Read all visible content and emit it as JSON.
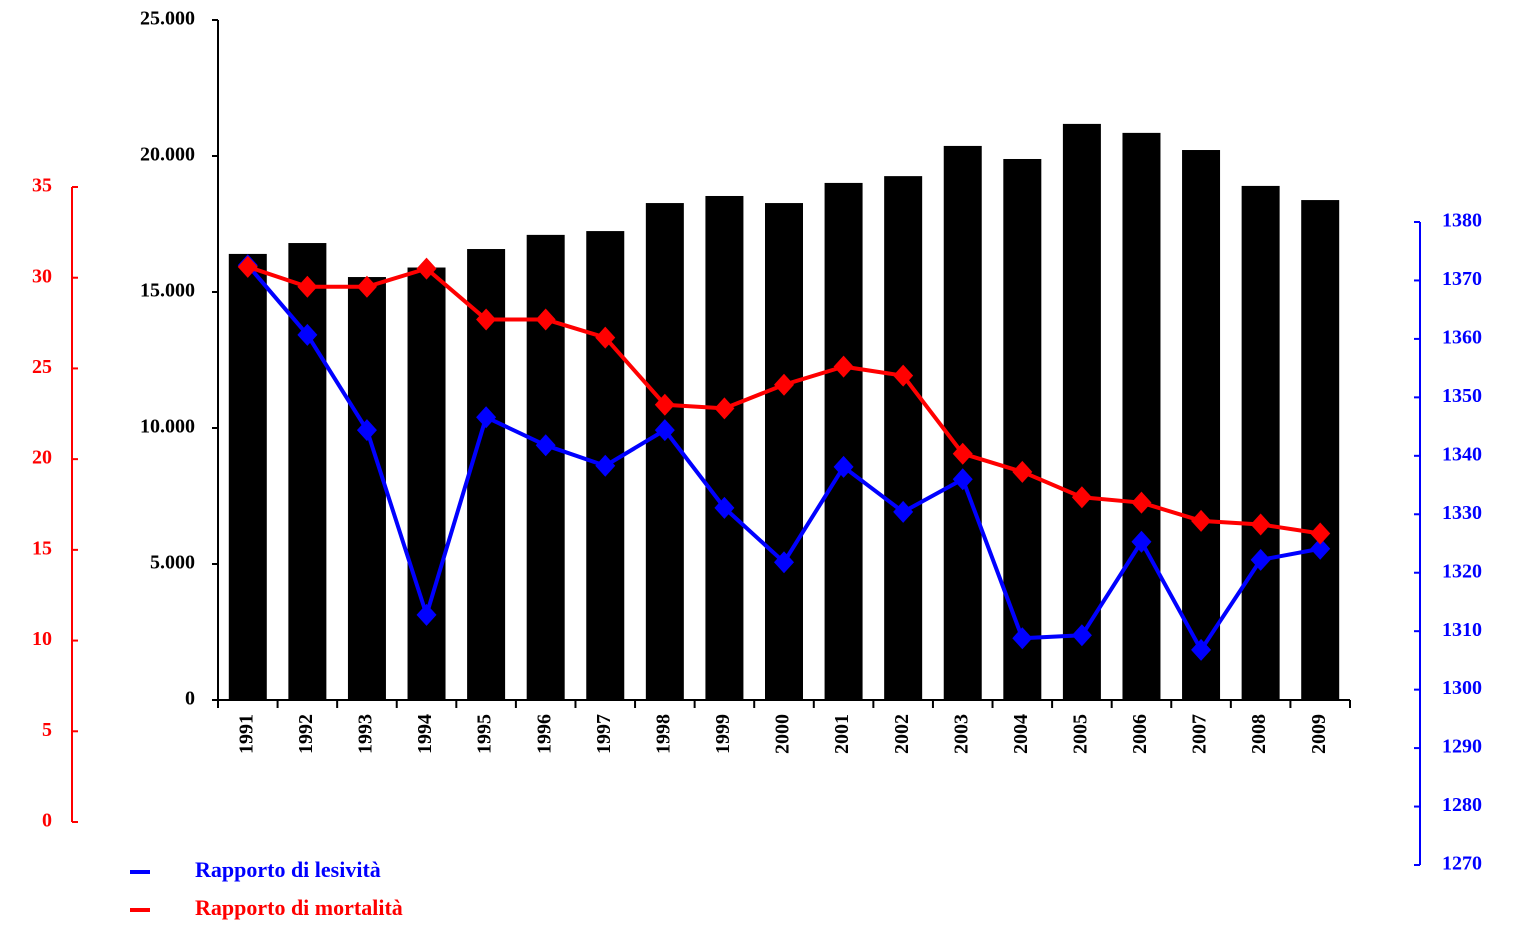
{
  "chart_data": {
    "type": "bar",
    "categories": [
      "1991",
      "1992",
      "1993",
      "1994",
      "1995",
      "1996",
      "1997",
      "1998",
      "1999",
      "2000",
      "2001",
      "2002",
      "2003",
      "2004",
      "2005",
      "2006",
      "2007",
      "2008",
      "2009"
    ],
    "series": [
      {
        "type": "bar",
        "color": "#000000",
        "values": [
          16400,
          16800,
          15550,
          15900,
          16580,
          17100,
          17240,
          18270,
          18530,
          18270,
          19010,
          19260,
          20370,
          19890,
          21180,
          20850,
          20220,
          18900,
          18380
        ]
      },
      {
        "type": "line",
        "name": "Rapporto di lesività",
        "color": "#0000ff",
        "axis": "y2",
        "values": [
          1372.6,
          1360.7,
          1344.4,
          1312.8,
          1346.6,
          1341.8,
          1338.3,
          1344.4,
          1331.1,
          1321.8,
          1338.1,
          1330.4,
          1336,
          1308.8,
          1309.3,
          1325.3,
          1306.8,
          1322.2,
          1324.1
        ]
      },
      {
        "type": "line",
        "name": "Rapporto di mortalità",
        "color": "#ff0000",
        "axis": "y3",
        "values": [
          30.6,
          29.5,
          29.5,
          30.5,
          27.7,
          27.7,
          26.7,
          23.0,
          22.8,
          24.1,
          25.1,
          24.6,
          20.3,
          19.3,
          17.9,
          17.6,
          16.6,
          16.4,
          15.9
        ]
      }
    ],
    "ylim": [
      0,
      25000
    ],
    "yticks": [
      0,
      {
        "value": 5000,
        "label": "5.000"
      },
      {
        "value": 10000,
        "label": "10.000"
      },
      {
        "value": 15000,
        "label": "15.000"
      },
      {
        "value": 20000,
        "label": "20.000"
      },
      {
        "value": 25000,
        "label": "25.000"
      }
    ],
    "y2lim": [
      1270,
      1380
    ],
    "y2ticks": [
      1270,
      1280,
      1290,
      1300,
      1310,
      1320,
      1330,
      1340,
      1350,
      1360,
      1370,
      1380
    ],
    "y3lim": [
      0,
      35
    ],
    "y3ticks": [
      0,
      5,
      10,
      15,
      20,
      25,
      30,
      35
    ],
    "legend": "bottom-left"
  }
}
